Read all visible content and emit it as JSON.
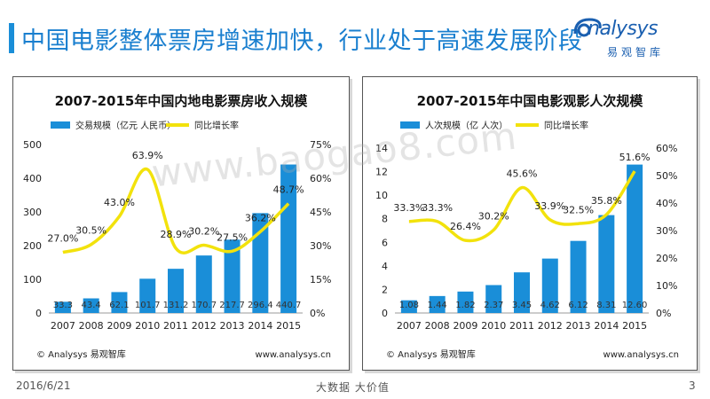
{
  "page": {
    "title": "中国电影整体票房增速加快，行业处于高速发展阶段",
    "logo_text": "nalysys",
    "logo_sub": "易观智库",
    "watermark": "www.baogao8.com",
    "footer_date": "2016/6/21",
    "footer_slogan": "大数据   大价值",
    "footer_page": "3"
  },
  "chart_data": [
    {
      "type": "bar",
      "title": "2007-2015年中国内地电影票房收入规模",
      "categories": [
        "2007",
        "2008",
        "2009",
        "2010",
        "2011",
        "2012",
        "2013",
        "2014",
        "2015"
      ],
      "series": [
        {
          "name": "交易规模（亿元 人民币）",
          "kind": "bar",
          "axis": "left",
          "values": [
            33.3,
            43.4,
            62.1,
            101.7,
            131.2,
            170.7,
            217.7,
            296.4,
            440.7
          ],
          "labels": [
            "33.3",
            "43.4",
            "62.1",
            "101.7",
            "131.2",
            "170.7",
            "217.7",
            "296.4",
            "440.7"
          ]
        },
        {
          "name": "同比增长率",
          "kind": "line",
          "axis": "right",
          "values": [
            27.0,
            30.5,
            43.0,
            63.9,
            28.9,
            30.2,
            27.5,
            36.2,
            48.7
          ],
          "labels": [
            "27.0%",
            "30.5%",
            "43.0%",
            "63.9%",
            "28.9%",
            "30.2%",
            "27.5%",
            "36.2%",
            "48.7%"
          ]
        }
      ],
      "y_left": {
        "min": 0,
        "max": 500,
        "ticks": [
          "0",
          "100",
          "200",
          "300",
          "400",
          "500"
        ]
      },
      "y_right": {
        "min": 0,
        "max": 75,
        "ticks": [
          "0%",
          "15%",
          "30%",
          "45%",
          "60%",
          "75%"
        ]
      },
      "legend_position": "top-left",
      "source": "© Analysys 易观智库",
      "website": "www.analysys.cn",
      "colors": {
        "bar": "#1a8ed8",
        "line": "#f2e20c"
      }
    },
    {
      "type": "bar",
      "title": "2007-2015年中国电影观影人次规模",
      "categories": [
        "2007",
        "2008",
        "2009",
        "2010",
        "2011",
        "2012",
        "2013",
        "2014",
        "2015"
      ],
      "series": [
        {
          "name": "人次规模（亿 人次）",
          "kind": "bar",
          "axis": "left",
          "values": [
            1.08,
            1.44,
            1.82,
            2.37,
            3.45,
            4.62,
            6.12,
            8.31,
            12.6
          ],
          "labels": [
            "1.08",
            "1.44",
            "1.82",
            "2.37",
            "3.45",
            "4.62",
            "6.12",
            "8.31",
            "12.60"
          ]
        },
        {
          "name": "同比增长率",
          "kind": "line",
          "axis": "right",
          "values": [
            33.3,
            33.3,
            26.4,
            30.2,
            45.6,
            33.9,
            32.5,
            35.8,
            51.6
          ],
          "labels": [
            "33.3%",
            "33.3%",
            "26.4%",
            "30.2%",
            "45.6%",
            "33.9%",
            "32.5%",
            "35.8%",
            "51.6%"
          ]
        }
      ],
      "y_left": {
        "min": 0,
        "max": 14,
        "ticks": [
          "0",
          "2",
          "4",
          "6",
          "8",
          "10",
          "12",
          "14"
        ]
      },
      "y_right": {
        "min": 0,
        "max": 60,
        "ticks": [
          "0%",
          "10%",
          "20%",
          "30%",
          "40%",
          "50%",
          "60%"
        ]
      },
      "legend_position": "top-left",
      "source": "© Analysys 易观智库",
      "website": "www.analysys.cn",
      "colors": {
        "bar": "#1a8ed8",
        "line": "#f2e20c"
      }
    }
  ]
}
